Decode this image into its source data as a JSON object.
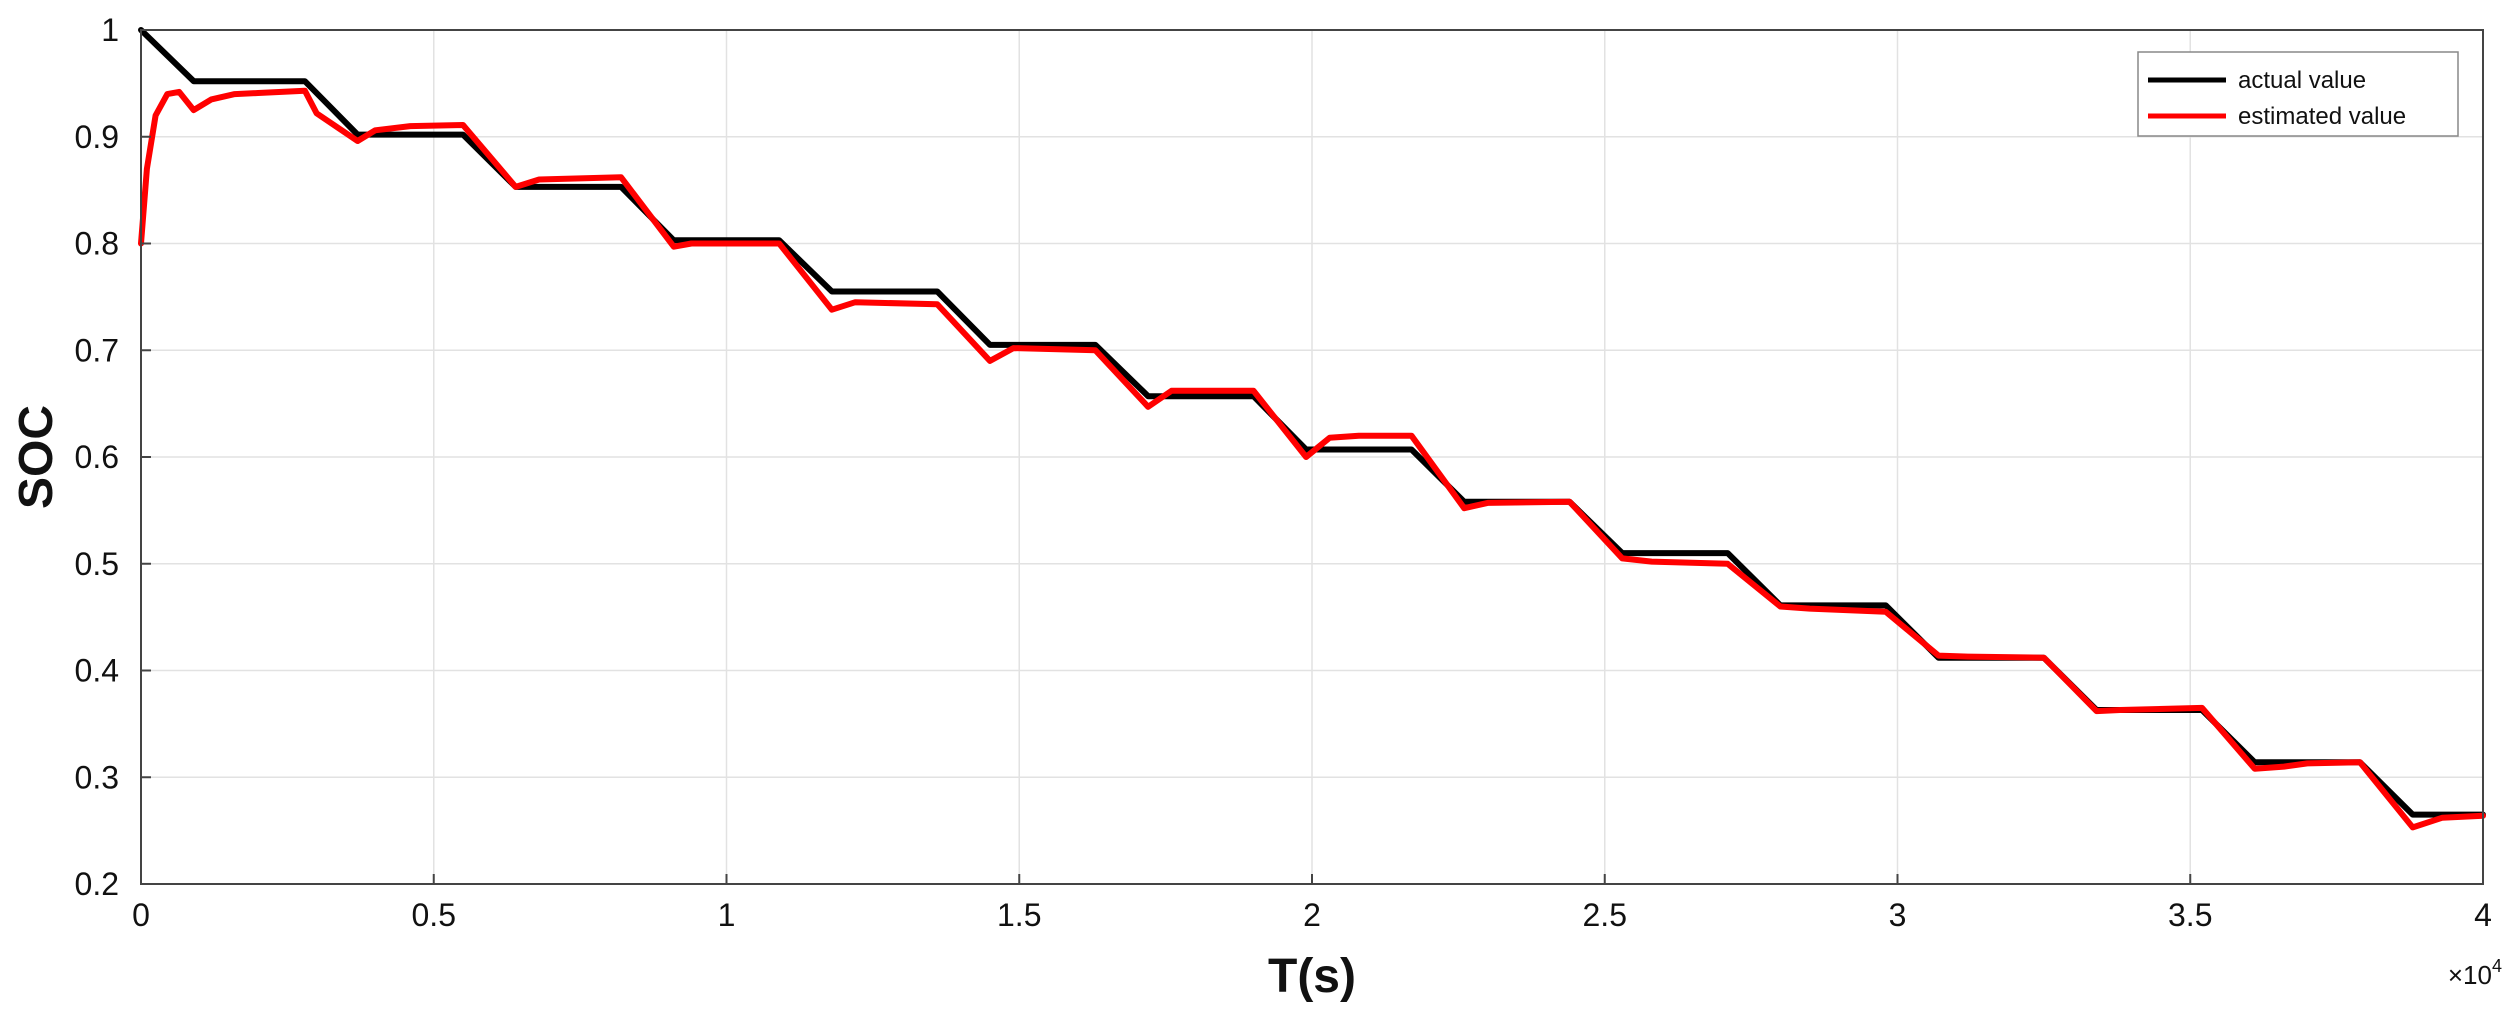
{
  "chart_data": {
    "type": "line",
    "xlabel": "T(s)",
    "ylabel": "SOC",
    "x_exponent_label": "×10",
    "x_exponent_power": "4",
    "x_scale": 10000,
    "xlim": [
      0,
      40000
    ],
    "ylim": [
      0.2,
      1
    ],
    "grid": true,
    "legend_position": "top-right",
    "x_ticks": [
      0,
      0.5,
      1,
      1.5,
      2,
      2.5,
      3,
      3.5,
      4
    ],
    "x_tick_labels": [
      "0",
      "0.5",
      "1",
      "1.5",
      "2",
      "2.5",
      "3",
      "3.5",
      "4"
    ],
    "y_ticks": [
      0.2,
      0.3,
      0.4,
      0.5,
      0.6,
      0.7,
      0.8,
      0.9,
      1
    ],
    "y_tick_labels": [
      "0.2",
      "0.3",
      "0.4",
      "0.5",
      "0.6",
      "0.7",
      "0.8",
      "0.9",
      "1"
    ],
    "series": [
      {
        "name": "actual value",
        "color": "#000000",
        "points": [
          [
            0,
            1.0
          ],
          [
            900,
            0.952
          ],
          [
            2800,
            0.952
          ],
          [
            3700,
            0.902
          ],
          [
            5500,
            0.902
          ],
          [
            6400,
            0.853
          ],
          [
            8200,
            0.853
          ],
          [
            9100,
            0.803
          ],
          [
            10900,
            0.803
          ],
          [
            11800,
            0.755
          ],
          [
            13600,
            0.755
          ],
          [
            14500,
            0.705
          ],
          [
            16300,
            0.705
          ],
          [
            17200,
            0.657
          ],
          [
            19000,
            0.657
          ],
          [
            19900,
            0.607
          ],
          [
            21700,
            0.607
          ],
          [
            22600,
            0.558
          ],
          [
            24400,
            0.558
          ],
          [
            25300,
            0.51
          ],
          [
            27100,
            0.51
          ],
          [
            28000,
            0.461
          ],
          [
            29800,
            0.461
          ],
          [
            30700,
            0.412
          ],
          [
            32500,
            0.412
          ],
          [
            33400,
            0.363
          ],
          [
            35200,
            0.363
          ],
          [
            36100,
            0.314
          ],
          [
            37900,
            0.314
          ],
          [
            38800,
            0.265
          ],
          [
            40000,
            0.265
          ]
        ]
      },
      {
        "name": "estimated value",
        "color": "#ff0000",
        "points": [
          [
            0,
            0.8
          ],
          [
            100,
            0.87
          ],
          [
            250,
            0.92
          ],
          [
            450,
            0.94
          ],
          [
            650,
            0.942
          ],
          [
            900,
            0.925
          ],
          [
            1200,
            0.935
          ],
          [
            1600,
            0.94
          ],
          [
            2000,
            0.941
          ],
          [
            2800,
            0.943
          ],
          [
            3000,
            0.922
          ],
          [
            3700,
            0.896
          ],
          [
            4000,
            0.906
          ],
          [
            4600,
            0.91
          ],
          [
            5500,
            0.911
          ],
          [
            6400,
            0.853
          ],
          [
            6800,
            0.86
          ],
          [
            8200,
            0.862
          ],
          [
            9100,
            0.797
          ],
          [
            9400,
            0.8
          ],
          [
            10900,
            0.8
          ],
          [
            11800,
            0.738
          ],
          [
            12200,
            0.745
          ],
          [
            13600,
            0.743
          ],
          [
            14500,
            0.69
          ],
          [
            14900,
            0.702
          ],
          [
            16300,
            0.7
          ],
          [
            17200,
            0.647
          ],
          [
            17600,
            0.662
          ],
          [
            19000,
            0.662
          ],
          [
            19900,
            0.6
          ],
          [
            20300,
            0.618
          ],
          [
            20800,
            0.62
          ],
          [
            21700,
            0.62
          ],
          [
            22600,
            0.552
          ],
          [
            23000,
            0.557
          ],
          [
            24400,
            0.558
          ],
          [
            25300,
            0.505
          ],
          [
            25800,
            0.502
          ],
          [
            27100,
            0.5
          ],
          [
            28000,
            0.46
          ],
          [
            28500,
            0.458
          ],
          [
            29800,
            0.455
          ],
          [
            30700,
            0.414
          ],
          [
            31200,
            0.413
          ],
          [
            32500,
            0.412
          ],
          [
            33400,
            0.362
          ],
          [
            33800,
            0.363
          ],
          [
            35200,
            0.365
          ],
          [
            36100,
            0.308
          ],
          [
            36600,
            0.31
          ],
          [
            37000,
            0.313
          ],
          [
            37900,
            0.314
          ],
          [
            38800,
            0.253
          ],
          [
            39300,
            0.262
          ],
          [
            40000,
            0.264
          ]
        ]
      }
    ]
  }
}
